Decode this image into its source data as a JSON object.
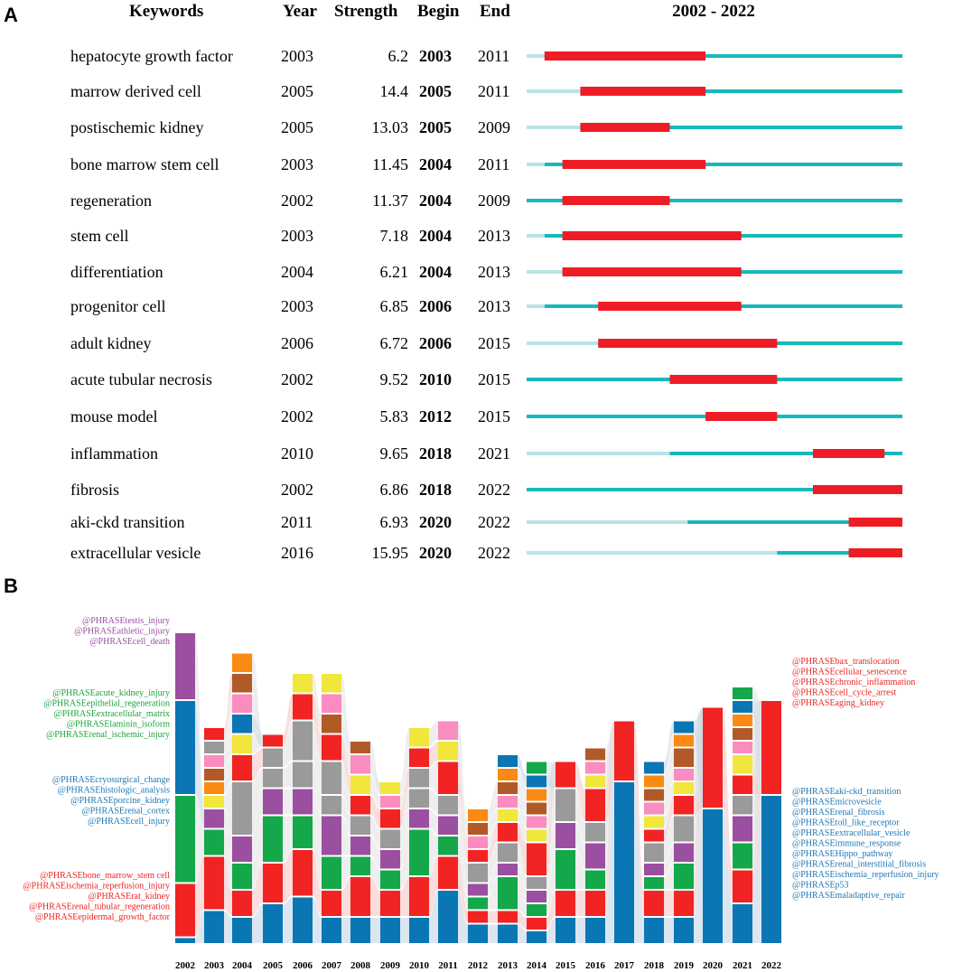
{
  "chart_data": [
    {
      "type": "bar",
      "subtype": "burst-timeline",
      "panel_label": "A",
      "title": "2002 - 2022",
      "range": [
        2002,
        2022
      ],
      "columns": {
        "keyword": "Keywords",
        "year": "Year",
        "strength": "Strength",
        "begin": "Begin",
        "end": "End"
      },
      "rows": [
        {
          "keyword": "hepatocyte growth factor",
          "year": 2003,
          "strength": "6.2",
          "begin": 2003,
          "end": 2011
        },
        {
          "keyword": "marrow derived cell",
          "year": 2005,
          "strength": "14.4",
          "begin": 2005,
          "end": 2011
        },
        {
          "keyword": "postischemic kidney",
          "year": 2005,
          "strength": "13.03",
          "begin": 2005,
          "end": 2009
        },
        {
          "keyword": "bone marrow stem cell",
          "year": 2003,
          "strength": "11.45",
          "begin": 2004,
          "end": 2011
        },
        {
          "keyword": "regeneration",
          "year": 2002,
          "strength": "11.37",
          "begin": 2004,
          "end": 2009
        },
        {
          "keyword": "stem cell",
          "year": 2003,
          "strength": "7.18",
          "begin": 2004,
          "end": 2013
        },
        {
          "keyword": "differentiation",
          "year": 2004,
          "strength": "6.21",
          "begin": 2004,
          "end": 2013
        },
        {
          "keyword": "progenitor cell",
          "year": 2003,
          "strength": "6.85",
          "begin": 2006,
          "end": 2013
        },
        {
          "keyword": "adult kidney",
          "year": 2006,
          "strength": "6.72",
          "begin": 2006,
          "end": 2015
        },
        {
          "keyword": "acute tubular necrosis",
          "year": 2002,
          "strength": "9.52",
          "begin": 2010,
          "end": 2015
        },
        {
          "keyword": "mouse model",
          "year": 2002,
          "strength": "5.83",
          "begin": 2012,
          "end": 2015
        },
        {
          "keyword": "inflammation",
          "year": 2010,
          "strength": "9.65",
          "begin": 2018,
          "end": 2021
        },
        {
          "keyword": "fibrosis",
          "year": 2002,
          "strength": "6.86",
          "begin": 2018,
          "end": 2022
        },
        {
          "keyword": "aki-ckd transition",
          "year": 2011,
          "strength": "6.93",
          "begin": 2020,
          "end": 2022
        },
        {
          "keyword": "extracellular vesicle",
          "year": 2016,
          "strength": "15.95",
          "begin": 2020,
          "end": 2022
        }
      ]
    },
    {
      "type": "bar",
      "subtype": "alluvial",
      "panel_label": "B",
      "years": [
        2002,
        2003,
        2004,
        2005,
        2006,
        2007,
        2008,
        2009,
        2010,
        2011,
        2012,
        2013,
        2014,
        2015,
        2016,
        2017,
        2018,
        2019,
        2020,
        2021,
        2022
      ],
      "stacks": [
        [
          "blue:1",
          "red:8",
          "green:13",
          "blue:14",
          "purple:10"
        ],
        [
          "blue:5",
          "red:8",
          "green:4",
          "purple:3",
          "yellow:2",
          "orange:2",
          "brown:2",
          "pink:2",
          "gray:2",
          "red:2"
        ],
        [
          "blue:4",
          "red:4",
          "green:4",
          "purple:4",
          "gray:8",
          "red:4",
          "yellow:3",
          "blue:3",
          "pink:3",
          "brown:3",
          "orange:3"
        ],
        [
          "blue:6",
          "red:6",
          "green:7",
          "purple:4",
          "gray:3",
          "gray:3",
          "red:2"
        ],
        [
          "blue:7",
          "red:7",
          "green:5",
          "purple:4",
          "gray:4",
          "gray:6",
          "red:4",
          "yellow:3"
        ],
        [
          "blue:4",
          "red:4",
          "green:5",
          "purple:6",
          "gray:3",
          "gray:5",
          "red:4",
          "brown:3",
          "pink:3",
          "yellow:3"
        ],
        [
          "blue:4",
          "red:6",
          "green:3",
          "purple:3",
          "gray:3",
          "red:3",
          "yellow:3",
          "pink:3",
          "brown:2"
        ],
        [
          "blue:4",
          "red:4",
          "green:3",
          "purple:3",
          "gray:3",
          "red:3",
          "pink:2",
          "yellow:2"
        ],
        [
          "blue:4",
          "red:6",
          "green:7",
          "purple:3",
          "gray:3",
          "gray:3",
          "red:3",
          "yellow:3"
        ],
        [
          "blue:8",
          "red:5",
          "green:3",
          "purple:3",
          "gray:3",
          "red:5",
          "yellow:3",
          "pink:3"
        ],
        [
          "blue:3",
          "red:2",
          "green:2",
          "purple:2",
          "gray:3",
          "red:2",
          "pink:2",
          "brown:2",
          "orange:2"
        ],
        [
          "blue:3",
          "red:2",
          "green:5",
          "purple:2",
          "gray:3",
          "red:3",
          "yellow:2",
          "pink:2",
          "brown:2",
          "orange:2",
          "blue:2"
        ],
        [
          "blue:2",
          "red:2",
          "green:2",
          "purple:2",
          "gray:2",
          "red:5",
          "yellow:2",
          "pink:2",
          "brown:2",
          "orange:2",
          "blue:2",
          "green:2"
        ],
        [
          "blue:4",
          "red:4",
          "green:6",
          "purple:4",
          "gray:5",
          "red:4"
        ],
        [
          "blue:4",
          "red:4",
          "green:3",
          "purple:4",
          "gray:3",
          "red:5",
          "yellow:2",
          "pink:2",
          "brown:2"
        ],
        [
          "blue:24",
          "red:9"
        ],
        [
          "blue:4",
          "red:4",
          "green:2",
          "purple:2",
          "gray:3",
          "red:2",
          "yellow:2",
          "pink:2",
          "brown:2",
          "orange:2",
          "blue:2"
        ],
        [
          "blue:4",
          "red:4",
          "green:4",
          "purple:3",
          "gray:4",
          "red:3",
          "yellow:2",
          "pink:2",
          "brown:3",
          "orange:2",
          "blue:2"
        ],
        [
          "blue:20",
          "red:15"
        ],
        [
          "blue:6",
          "red:5",
          "green:4",
          "purple:4",
          "gray:3",
          "red:3",
          "yellow:3",
          "pink:2",
          "brown:2",
          "orange:2",
          "blue:2",
          "green:2"
        ],
        [
          "blue:22",
          "red:14"
        ]
      ],
      "label_groups": [
        {
          "side": "left",
          "color": "#9b4fa0",
          "labels": [
            "@PHRASEtestis_injury",
            "@PHRASEathletic_injury",
            "@PHRASEcell_death"
          ]
        },
        {
          "side": "left",
          "color": "#1aa53d",
          "labels": [
            "@PHRASEacute_kidney_injury",
            "@PHRASEepithelial_regeneration",
            "@PHRASEextracellular_matrix",
            "@PHRASElaminin_isoform",
            "@PHRASErenal_ischemic_injury"
          ]
        },
        {
          "side": "left",
          "color": "#1f78b4",
          "labels": [
            "@PHRASEcryosurgical_change",
            "@PHRASEhistologic_analysis",
            "@PHRASEporcine_kidney",
            "@PHRASErenal_cortex",
            "@PHRASEcell_injury"
          ]
        },
        {
          "side": "left",
          "color": "#ee2424",
          "labels": [
            "@PHRASEbone_marrow_stem cell",
            "@PHRASEischemia_reperfusion_injury",
            "@PHRASErat_kidney",
            "@PHRASErenal_tubular_regeneration",
            "@PHRASEepidermal_growth_factor"
          ]
        },
        {
          "side": "right",
          "color": "#ee2424",
          "labels": [
            "@PHRASEbax_translocation",
            "@PHRASEcellular_senescence",
            "@PHRASEchronic_inflammation",
            "@PHRASEcell_cycle_arrest",
            "@PHRASEaging_kidney"
          ]
        },
        {
          "side": "right",
          "color": "#1f78b4",
          "labels": [
            "@PHRASEaki-ckd_transition",
            "@PHRASEmicrovesicle",
            "@PHRASErenal_fibrosis",
            "@PHRASEtoll_like_receptor",
            "@PHRASEextracellular_vesicle",
            "@PHRASEimmune_response",
            "@PHRASEHippo_pathway",
            "@PHRASErenal_interstitial_fibrosis",
            "@PHRASEischemia_reperfusion_injury",
            "@PHRASEp53",
            "@PHRASEmaladaptive_repair"
          ]
        }
      ]
    }
  ],
  "colors": {
    "burst": "#ee1c25",
    "active": "#17b9bb",
    "inactive": "#b9e4e6",
    "blue": "#0a76b4",
    "red": "#f12323",
    "green": "#14a84a",
    "purple": "#9b4fa0",
    "gray": "#9a9a9a",
    "yellow": "#f1e63c",
    "pink": "#fb8cbf",
    "brown": "#b15a28",
    "orange": "#fb8a12",
    "flow": "#c4d6e6"
  }
}
